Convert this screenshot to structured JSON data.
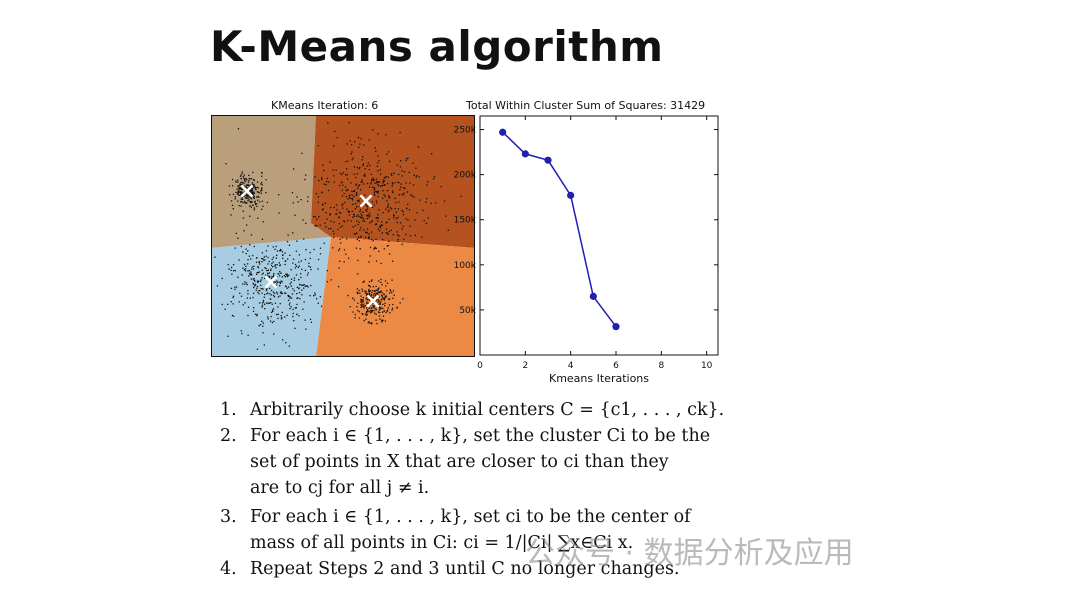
{
  "slide": {
    "title": "K-Means algorithm"
  },
  "kmeans_plot": {
    "title": "KMeans Iteration: 6",
    "region_colors": [
      "#b99f7b",
      "#b4531f",
      "#a8cde3",
      "#ec8a45"
    ],
    "centroid_marker": "×"
  },
  "chart_data": {
    "type": "line",
    "title": "Total Within Cluster Sum of Squares: 31429",
    "xlabel": "Kmeans Iterations",
    "ylabel": "",
    "x": [
      1,
      2,
      3,
      4,
      5,
      6
    ],
    "series": [
      {
        "values": [
          247000,
          223000,
          216000,
          177000,
          65000,
          31429
        ]
      }
    ],
    "xlim": [
      0,
      10.5
    ],
    "ylim": [
      0,
      265000
    ],
    "xticks": [
      0,
      2,
      4,
      6,
      8,
      10
    ],
    "xtick_labels": [
      "0",
      "2",
      "4",
      "6",
      "8",
      "10"
    ],
    "yticks": [
      50000,
      100000,
      150000,
      200000,
      250000
    ],
    "ytick_labels": [
      "50k",
      "100k",
      "150k",
      "200k",
      "250k"
    ],
    "color": "#1f1fb0",
    "grid": false
  },
  "algorithm": {
    "steps": [
      {
        "num": "1.",
        "lines": [
          "Arbitrarily choose k initial centers C = {c1, . . . , ck}."
        ]
      },
      {
        "num": "2.",
        "lines": [
          "For each i ∈ {1, . . . , k}, set the cluster Ci to be the",
          "set of points in X that are closer to ci than they",
          "are to cj for all j ≠ i."
        ]
      },
      {
        "num": "3.",
        "lines": [
          "For each i ∈ {1, . . . , k}, set ci to be the center of",
          "mass of all points in Ci: ci = 1/|Ci| ∑x∈Ci x."
        ]
      },
      {
        "num": "4.",
        "lines": [
          "Repeat Steps 2 and 3 until C no longer changes."
        ]
      }
    ]
  },
  "watermark": {
    "text": "公众号 · 数据分析及应用"
  }
}
